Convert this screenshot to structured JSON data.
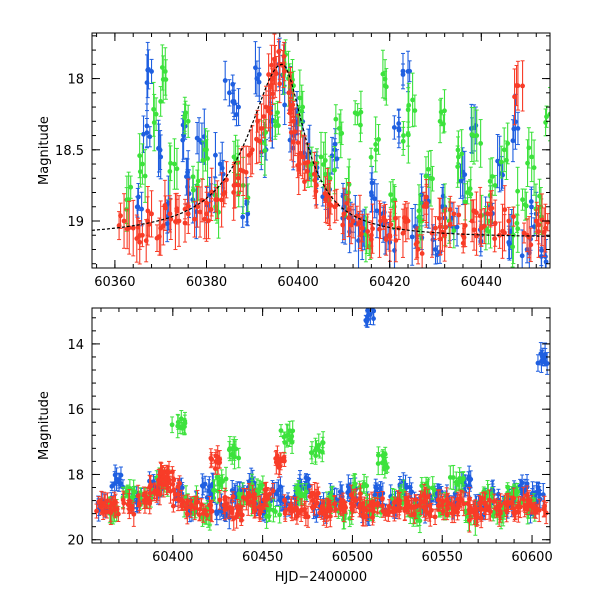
{
  "chart_data": [
    {
      "type": "scatter",
      "panel": "top",
      "xlim": [
        60355,
        60455
      ],
      "ylim": [
        19.33,
        17.68
      ],
      "y_inverted": true,
      "x_ticks": [
        60360,
        60380,
        60400,
        60420,
        60440
      ],
      "x_tick_labels": [
        "60360",
        "60380",
        "60400",
        "60420",
        "60440"
      ],
      "y_ticks": [
        18,
        18.5,
        19
      ],
      "y_tick_labels": [
        "18",
        "18.5",
        "19"
      ],
      "xlabel": "",
      "ylabel": "Magnitude",
      "model_curve": {
        "color": "#000000",
        "peak_x": 60396.5,
        "peak_mag": 17.9,
        "baseline_mag": 19.12,
        "note_style": "dashed"
      },
      "series": [
        {
          "color": "#1f5fe0",
          "points": [
            [
              60365,
              18.9
            ],
            [
              60367,
              18.38
            ],
            [
              60368,
              17.95
            ],
            [
              60370,
              18.55
            ],
            [
              60372,
              18.95
            ],
            [
              60375,
              18.4
            ],
            [
              60376,
              18.7
            ],
            [
              60377,
              18.85
            ],
            [
              60379,
              18.45
            ],
            [
              60381,
              18.8
            ],
            [
              60383,
              18.6
            ],
            [
              60385,
              18.1
            ],
            [
              60387,
              18.2
            ],
            [
              60389,
              18.95
            ],
            [
              60391,
              18.0
            ],
            [
              60393,
              18.5
            ],
            [
              60394,
              18.3
            ],
            [
              60396,
              17.9
            ],
            [
              60398,
              18.1
            ],
            [
              60399,
              18.4
            ],
            [
              60400,
              18.3
            ],
            [
              60402,
              18.55
            ],
            [
              60404,
              18.7
            ],
            [
              60406,
              18.85
            ],
            [
              60408,
              18.5
            ],
            [
              60410,
              18.9
            ],
            [
              60412,
              19.0
            ],
            [
              60414,
              19.1
            ],
            [
              60416,
              18.8
            ],
            [
              60418,
              18.95
            ],
            [
              60420,
              19.15
            ],
            [
              60422,
              18.35
            ],
            [
              60424,
              17.95
            ],
            [
              60426,
              19.05
            ],
            [
              60428,
              18.85
            ],
            [
              60430,
              19.2
            ],
            [
              60432,
              18.9
            ],
            [
              60434,
              19.05
            ],
            [
              60436,
              18.7
            ],
            [
              60438,
              18.4
            ],
            [
              60440,
              19.1
            ],
            [
              60442,
              18.9
            ],
            [
              60444,
              18.6
            ],
            [
              60446,
              19.15
            ],
            [
              60448,
              18.35
            ],
            [
              60450,
              19.2
            ],
            [
              60452,
              18.95
            ],
            [
              60454,
              19.25
            ]
          ]
        },
        {
          "color": "#3ce23c",
          "points": [
            [
              60363,
              18.85
            ],
            [
              60366,
              18.6
            ],
            [
              60369,
              18.25
            ],
            [
              60371,
              17.95
            ],
            [
              60373,
              18.6
            ],
            [
              60376,
              18.3
            ],
            [
              60378,
              18.75
            ],
            [
              60380,
              18.5
            ],
            [
              60382,
              18.9
            ],
            [
              60386,
              18.55
            ],
            [
              60388,
              18.75
            ],
            [
              60392,
              18.45
            ],
            [
              60395,
              18.3
            ],
            [
              60397,
              17.9
            ],
            [
              60399,
              18.05
            ],
            [
              60401,
              18.2
            ],
            [
              60403,
              18.6
            ],
            [
              60405,
              18.55
            ],
            [
              60407,
              18.7
            ],
            [
              60409,
              18.35
            ],
            [
              60411,
              18.8
            ],
            [
              60413,
              18.25
            ],
            [
              60415,
              19.1
            ],
            [
              60417,
              18.5
            ],
            [
              60419,
              18.05
            ],
            [
              60421,
              18.9
            ],
            [
              60423,
              18.4
            ],
            [
              60425,
              18.15
            ],
            [
              60427,
              19.0
            ],
            [
              60429,
              18.7
            ],
            [
              60431,
              18.3
            ],
            [
              60433,
              19.0
            ],
            [
              60435,
              18.55
            ],
            [
              60437,
              18.8
            ],
            [
              60439,
              18.4
            ],
            [
              60441,
              19.05
            ],
            [
              60443,
              18.75
            ],
            [
              60445,
              18.5
            ],
            [
              60447,
              19.1
            ],
            [
              60449,
              18.85
            ],
            [
              60451,
              18.55
            ],
            [
              60453,
              18.9
            ],
            [
              60455,
              18.25
            ]
          ]
        },
        {
          "color": "#f83c28",
          "points": [
            [
              60362,
              19.0
            ],
            [
              60364,
              19.05
            ],
            [
              60366,
              19.1
            ],
            [
              60368,
              18.95
            ],
            [
              60370,
              19.05
            ],
            [
              60372,
              18.95
            ],
            [
              60374,
              19.0
            ],
            [
              60376,
              18.95
            ],
            [
              60378,
              18.9
            ],
            [
              60380,
              18.95
            ],
            [
              60382,
              18.85
            ],
            [
              60384,
              18.8
            ],
            [
              60386,
              18.75
            ],
            [
              60388,
              18.65
            ],
            [
              60390,
              18.5
            ],
            [
              60392,
              18.35
            ],
            [
              60393,
              18.2
            ],
            [
              60394,
              18.05
            ],
            [
              60395,
              17.95
            ],
            [
              60396,
              17.9
            ],
            [
              60397,
              17.95
            ],
            [
              60398,
              18.1
            ],
            [
              60399,
              18.3
            ],
            [
              60400,
              18.45
            ],
            [
              60401,
              18.55
            ],
            [
              60402,
              18.65
            ],
            [
              60404,
              18.75
            ],
            [
              60406,
              18.85
            ],
            [
              60408,
              18.9
            ],
            [
              60410,
              18.95
            ],
            [
              60412,
              19.0
            ],
            [
              60414,
              19.05
            ],
            [
              60416,
              19.1
            ],
            [
              60418,
              19.0
            ],
            [
              60420,
              19.1
            ],
            [
              60422,
              19.05
            ],
            [
              60424,
              19.0
            ],
            [
              60426,
              19.15
            ],
            [
              60428,
              18.9
            ],
            [
              60430,
              19.05
            ],
            [
              60432,
              19.1
            ],
            [
              60434,
              18.95
            ],
            [
              60436,
              19.1
            ],
            [
              60438,
              19.0
            ],
            [
              60440,
              19.05
            ],
            [
              60442,
              18.95
            ],
            [
              60444,
              19.1
            ],
            [
              60446,
              19.0
            ],
            [
              60448,
              18.05
            ],
            [
              60450,
              19.1
            ],
            [
              60452,
              19.0
            ],
            [
              60454,
              19.05
            ]
          ]
        }
      ]
    },
    {
      "type": "scatter",
      "panel": "bottom",
      "xlim": [
        60355,
        60610
      ],
      "ylim": [
        20.1,
        12.9
      ],
      "y_inverted": true,
      "x_ticks": [
        60400,
        60450,
        60500,
        60550,
        60600
      ],
      "x_tick_labels": [
        "60400",
        "60450",
        "60500",
        "60550",
        "60600"
      ],
      "y_ticks": [
        14,
        16,
        18,
        20
      ],
      "y_tick_labels": [
        "14",
        "16",
        "18",
        "20"
      ],
      "xlabel": "HJD−2400000",
      "ylabel": "Magnitude",
      "series": [
        {
          "color": "#1f5fe0",
          "points": [
            [
              60362,
              18.9
            ],
            [
              60370,
              18.2
            ],
            [
              60380,
              18.7
            ],
            [
              60390,
              18.4
            ],
            [
              60405,
              18.6
            ],
            [
              60412,
              18.95
            ],
            [
              60420,
              18.5
            ],
            [
              60428,
              19.1
            ],
            [
              60435,
              18.7
            ],
            [
              60442,
              18.4
            ],
            [
              60450,
              19.0
            ],
            [
              60458,
              18.6
            ],
            [
              60466,
              18.9
            ],
            [
              60474,
              18.3
            ],
            [
              60482,
              19.05
            ],
            [
              60490,
              18.7
            ],
            [
              60498,
              18.5
            ],
            [
              60506,
              19.1
            ],
            [
              60510,
              13.1
            ],
            [
              60514,
              18.6
            ],
            [
              60522,
              18.9
            ],
            [
              60530,
              18.4
            ],
            [
              60538,
              19.0
            ],
            [
              60546,
              18.6
            ],
            [
              60554,
              18.8
            ],
            [
              60562,
              18.3
            ],
            [
              60570,
              19.1
            ],
            [
              60578,
              18.6
            ],
            [
              60586,
              18.9
            ],
            [
              60594,
              18.4
            ],
            [
              60600,
              19.0
            ],
            [
              60606,
              14.4
            ],
            [
              60604,
              18.6
            ]
          ]
        },
        {
          "color": "#3ce23c",
          "points": [
            [
              60365,
              19.0
            ],
            [
              60375,
              18.6
            ],
            [
              60385,
              18.8
            ],
            [
              60395,
              18.2
            ],
            [
              60403,
              16.4
            ],
            [
              60410,
              18.9
            ],
            [
              60418,
              19.2
            ],
            [
              60426,
              18.3
            ],
            [
              60433,
              17.4
            ],
            [
              60440,
              18.8
            ],
            [
              60448,
              18.5
            ],
            [
              60456,
              19.1
            ],
            [
              60464,
              16.8
            ],
            [
              60472,
              18.6
            ],
            [
              60480,
              17.2
            ],
            [
              60488,
              18.9
            ],
            [
              60496,
              19.2
            ],
            [
              60504,
              18.4
            ],
            [
              60512,
              19.0
            ],
            [
              60518,
              17.6
            ],
            [
              60526,
              18.7
            ],
            [
              60534,
              19.2
            ],
            [
              60542,
              18.5
            ],
            [
              60550,
              19.0
            ],
            [
              60558,
              18.3
            ],
            [
              60566,
              19.3
            ],
            [
              60574,
              18.7
            ],
            [
              60582,
              19.1
            ],
            [
              60590,
              18.5
            ],
            [
              60598,
              19.0
            ]
          ]
        },
        {
          "color": "#f83c28",
          "points": [
            [
              60360,
              19.0
            ],
            [
              60368,
              19.05
            ],
            [
              60376,
              19.0
            ],
            [
              60384,
              18.8
            ],
            [
              60390,
              18.5
            ],
            [
              60394,
              18.1
            ],
            [
              60397,
              17.95
            ],
            [
              60400,
              18.3
            ],
            [
              60404,
              18.8
            ],
            [
              60410,
              19.0
            ],
            [
              60418,
              19.1
            ],
            [
              60424,
              17.6
            ],
            [
              60430,
              18.9
            ],
            [
              60436,
              19.2
            ],
            [
              60442,
              18.7
            ],
            [
              60448,
              19.0
            ],
            [
              60454,
              18.6
            ],
            [
              60460,
              17.6
            ],
            [
              60466,
              19.0
            ],
            [
              60472,
              19.1
            ],
            [
              60478,
              18.8
            ],
            [
              60484,
              19.2
            ],
            [
              60490,
              18.9
            ],
            [
              60496,
              19.0
            ],
            [
              60502,
              18.8
            ],
            [
              60508,
              19.1
            ],
            [
              60514,
              18.95
            ],
            [
              60520,
              19.2
            ],
            [
              60526,
              18.9
            ],
            [
              60532,
              19.0
            ],
            [
              60538,
              18.8
            ],
            [
              60544,
              19.1
            ],
            [
              60550,
              18.95
            ],
            [
              60556,
              19.0
            ],
            [
              60562,
              18.9
            ],
            [
              60568,
              19.2
            ],
            [
              60574,
              18.9
            ],
            [
              60580,
              19.05
            ],
            [
              60586,
              18.9
            ],
            [
              60592,
              19.0
            ],
            [
              60598,
              18.85
            ],
            [
              60604,
              19.1
            ]
          ]
        }
      ]
    }
  ]
}
